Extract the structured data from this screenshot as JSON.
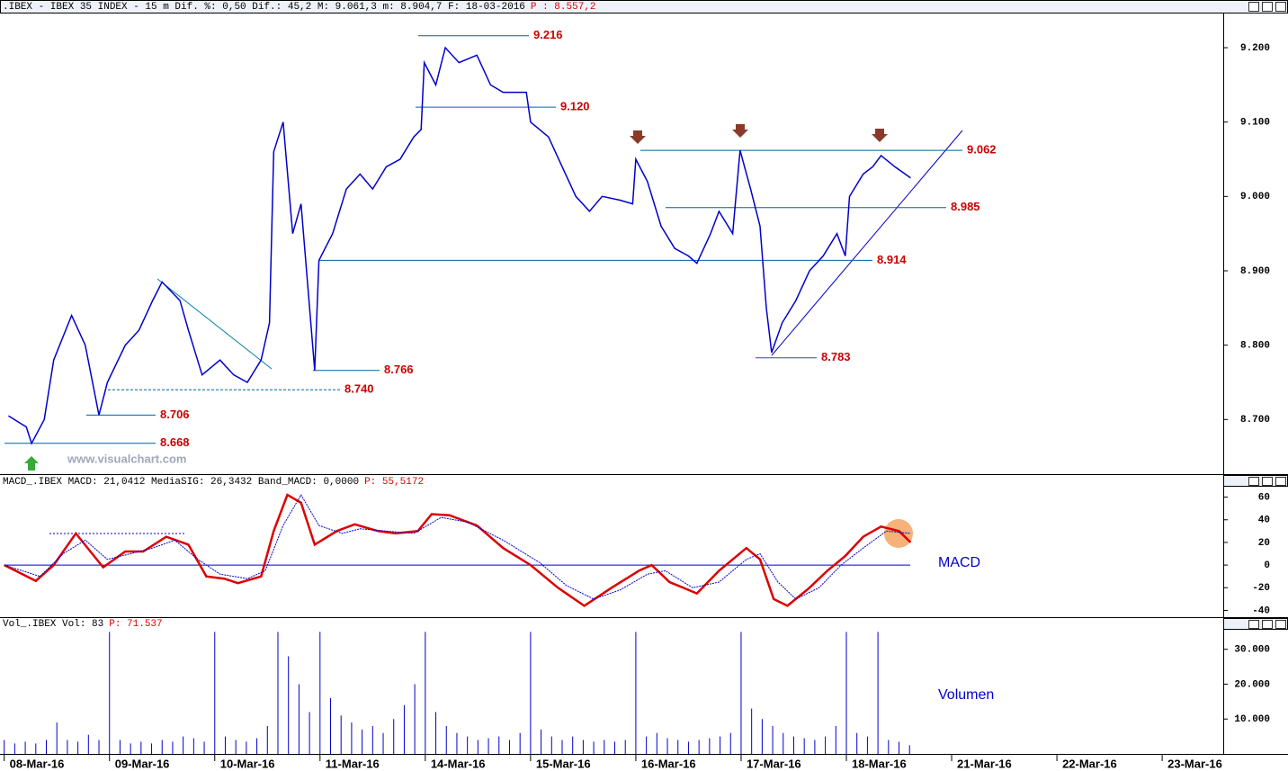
{
  "chart_data": [
    {
      "type": "line",
      "title": ".IBEX - IBEX 35 INDEX -  15 m Dif. %: 0,50 Dif.: 45,2 M: 9.061,3 m: 8.904,7 F: 18-03-2016",
      "title_note": "P : 8.557,2",
      "watermark": "www.visualchart.com",
      "xlim": [
        -0.04,
        11.58
      ],
      "ylim": [
        8629,
        9246
      ],
      "yticks": [
        {
          "value": 9200,
          "label": "9.200"
        },
        {
          "value": 9100,
          "label": "9.100"
        },
        {
          "value": 9000,
          "label": "9.000"
        },
        {
          "value": 8900,
          "label": "8.900"
        },
        {
          "value": 8800,
          "label": "8.800"
        },
        {
          "value": 8700,
          "label": "8.700"
        }
      ],
      "series": [
        {
          "color": "#0000cc",
          "x": [
            0.04,
            0.21,
            0.26,
            0.38,
            0.47,
            0.64,
            0.77,
            0.9,
            0.98,
            1.15,
            1.28,
            1.41,
            1.5,
            1.67,
            1.75,
            1.88,
            2.05,
            2.18,
            2.31,
            2.44,
            2.52,
            2.56,
            2.65,
            2.74,
            2.82,
            2.95,
            2.99,
            3.12,
            3.25,
            3.38,
            3.5,
            3.63,
            3.76,
            3.89,
            3.96,
            3.99,
            4.1,
            4.19,
            4.32,
            4.49,
            4.62,
            4.74,
            4.96,
            5.0,
            5.17,
            5.3,
            5.43,
            5.56,
            5.68,
            5.85,
            5.97,
            6.0,
            6.11,
            6.24,
            6.37,
            6.5,
            6.58,
            6.71,
            6.79,
            6.92,
            6.99,
            7.09,
            7.18,
            7.24,
            7.29,
            7.39,
            7.52,
            7.65,
            7.78,
            7.91,
            7.99,
            8.03,
            8.16,
            8.25,
            8.33,
            8.46,
            8.61
          ],
          "values": [
            8705,
            8690,
            8668,
            8700,
            8780,
            8840,
            8800,
            8706,
            8750,
            8800,
            8820,
            8860,
            8885,
            8860,
            8820,
            8760,
            8780,
            8760,
            8750,
            8780,
            8830,
            9060,
            9100,
            8950,
            8990,
            8766,
            8914,
            8950,
            9010,
            9030,
            9010,
            9040,
            9050,
            9080,
            9090,
            9180,
            9150,
            9200,
            9180,
            9190,
            9150,
            9140,
            9140,
            9100,
            9080,
            9040,
            9000,
            8980,
            9000,
            8995,
            8990,
            9050,
            9020,
            8960,
            8930,
            8920,
            8910,
            8950,
            8980,
            8950,
            9062,
            9010,
            8960,
            8850,
            8790,
            8830,
            8860,
            8900,
            8920,
            8950,
            8920,
            9000,
            9030,
            9040,
            9055,
            9040,
            9025
          ]
        }
      ],
      "levels": [
        {
          "value": 9216,
          "label": "9.216"
        },
        {
          "value": 9120,
          "label": "9.120"
        },
        {
          "value": 9062,
          "label": "9.062"
        },
        {
          "value": 8985,
          "label": "8.985"
        },
        {
          "value": 8914,
          "label": "8.914"
        },
        {
          "value": 8783,
          "label": "8.783"
        },
        {
          "value": 8766,
          "label": "8.766"
        },
        {
          "value": 8740,
          "label": "8.740"
        },
        {
          "value": 8706,
          "label": "8.706"
        },
        {
          "value": 8668,
          "label": "8.668"
        }
      ]
    },
    {
      "type": "line",
      "title": "MACD_.IBEX MACD: 21,0412 MediaSIG: 26,3432 Band_MACD: 0,0000",
      "title_note": "P: 55,5172",
      "label": "MACD",
      "xlim": [
        -0.04,
        11.58
      ],
      "ylim": [
        -46,
        70
      ],
      "yticks": [
        60,
        40,
        20,
        0,
        -20,
        -40
      ],
      "series": [
        {
          "color": "#dd0000",
          "x": [
            0,
            0.3,
            0.47,
            0.68,
            0.94,
            1.15,
            1.32,
            1.54,
            1.75,
            1.92,
            2.09,
            2.22,
            2.44,
            2.56,
            2.69,
            2.82,
            2.95,
            3.16,
            3.33,
            3.55,
            3.72,
            3.93,
            4.06,
            4.23,
            4.49,
            4.74,
            5.0,
            5.26,
            5.51,
            5.77,
            6.03,
            6.15,
            6.32,
            6.58,
            6.79,
            7.05,
            7.18,
            7.31,
            7.44,
            7.65,
            7.82,
            7.99,
            8.16,
            8.33,
            8.5,
            8.61
          ],
          "values": [
            0,
            -14,
            0,
            28,
            -2,
            12,
            12,
            25,
            18,
            -10,
            -12,
            -16,
            -10,
            30,
            62,
            55,
            18,
            30,
            36,
            30,
            28,
            30,
            45,
            44,
            35,
            15,
            0,
            -20,
            -36,
            -20,
            -5,
            0,
            -15,
            -25,
            -5,
            15,
            5,
            -30,
            -36,
            -20,
            -5,
            8,
            25,
            34,
            30,
            20
          ]
        },
        {
          "color": "#0000cc",
          "x": [
            0,
            0.34,
            0.56,
            0.77,
            0.98,
            1.2,
            1.41,
            1.62,
            1.84,
            2.05,
            2.31,
            2.48,
            2.65,
            2.82,
            2.99,
            3.21,
            3.38,
            3.63,
            3.89,
            4.15,
            4.4,
            4.74,
            5.09,
            5.34,
            5.6,
            5.85,
            6.11,
            6.28,
            6.54,
            6.79,
            7.05,
            7.18,
            7.35,
            7.52,
            7.74,
            7.95,
            8.16,
            8.38,
            8.61
          ],
          "values": [
            0,
            -10,
            10,
            22,
            5,
            10,
            15,
            22,
            5,
            -8,
            -12,
            -5,
            35,
            62,
            35,
            28,
            32,
            30,
            28,
            42,
            38,
            22,
            2,
            -18,
            -30,
            -22,
            -8,
            -5,
            -20,
            -15,
            5,
            10,
            -15,
            -30,
            -20,
            0,
            15,
            30,
            28
          ]
        }
      ]
    },
    {
      "type": "bar",
      "title": "Vol_.IBEX Vol: 83",
      "title_note": "P: 71.537",
      "label": "Volumen",
      "xlim": [
        -0.04,
        11.58
      ],
      "ylim": [
        0,
        35600
      ],
      "yticks": [
        {
          "value": 30000,
          "label": "30.000"
        },
        {
          "value": 20000,
          "label": "20.000"
        },
        {
          "value": 10000,
          "label": "10.000"
        }
      ],
      "xticks": [
        {
          "value": 0,
          "label": "08-Mar-16"
        },
        {
          "value": 1,
          "label": "09-Mar-16"
        },
        {
          "value": 2,
          "label": "10-Mar-16"
        },
        {
          "value": 3,
          "label": "11-Mar-16"
        },
        {
          "value": 4,
          "label": "14-Mar-16"
        },
        {
          "value": 5,
          "label": "15-Mar-16"
        },
        {
          "value": 6,
          "label": "16-Mar-16"
        },
        {
          "value": 7,
          "label": "17-Mar-16"
        },
        {
          "value": 8,
          "label": "18-Mar-16"
        },
        {
          "value": 9,
          "label": "21-Mar-16"
        },
        {
          "value": 10,
          "label": "22-Mar-16"
        },
        {
          "value": 11,
          "label": "23-Mar-16"
        }
      ],
      "series": [
        {
          "color": "#0000cc",
          "x": [
            0,
            0.1,
            0.2,
            0.3,
            0.4,
            0.5,
            0.6,
            0.7,
            0.8,
            0.9,
            1,
            1.1,
            1.2,
            1.3,
            1.4,
            1.5,
            1.6,
            1.7,
            1.8,
            1.9,
            2,
            2.1,
            2.2,
            2.3,
            2.4,
            2.5,
            2.6,
            2.7,
            2.8,
            2.9,
            3,
            3.1,
            3.2,
            3.3,
            3.4,
            3.5,
            3.6,
            3.7,
            3.8,
            3.9,
            4,
            4.1,
            4.2,
            4.3,
            4.4,
            4.5,
            4.6,
            4.7,
            4.8,
            4.9,
            5,
            5.1,
            5.2,
            5.3,
            5.4,
            5.5,
            5.6,
            5.7,
            5.8,
            5.9,
            6,
            6.1,
            6.2,
            6.3,
            6.4,
            6.5,
            6.6,
            6.7,
            6.8,
            6.9,
            7,
            7.1,
            7.2,
            7.3,
            7.4,
            7.5,
            7.6,
            7.7,
            7.8,
            7.9,
            8,
            8.1,
            8.2,
            8.3,
            8.4,
            8.5,
            8.6
          ],
          "values": [
            4000,
            3000,
            3500,
            3000,
            4000,
            9000,
            4000,
            3500,
            5500,
            4000,
            35000,
            4000,
            3000,
            3500,
            3000,
            4000,
            3500,
            5000,
            4500,
            3500,
            35000,
            5000,
            4000,
            3500,
            4500,
            8000,
            35000,
            28000,
            20000,
            12000,
            35000,
            16000,
            11000,
            9000,
            7000,
            8000,
            6000,
            10000,
            14000,
            20000,
            35000,
            12000,
            8000,
            6000,
            5000,
            4000,
            4500,
            5000,
            4000,
            6000,
            35000,
            7000,
            5000,
            4000,
            5000,
            4000,
            3500,
            4000,
            3500,
            4000,
            35000,
            5000,
            6000,
            4500,
            4000,
            3500,
            4000,
            4500,
            5000,
            6000,
            35000,
            13000,
            10000,
            8000,
            6000,
            5000,
            4500,
            4000,
            5000,
            8000,
            35000,
            6000,
            5000,
            35000,
            4000,
            3500,
            2500
          ]
        }
      ]
    }
  ]
}
